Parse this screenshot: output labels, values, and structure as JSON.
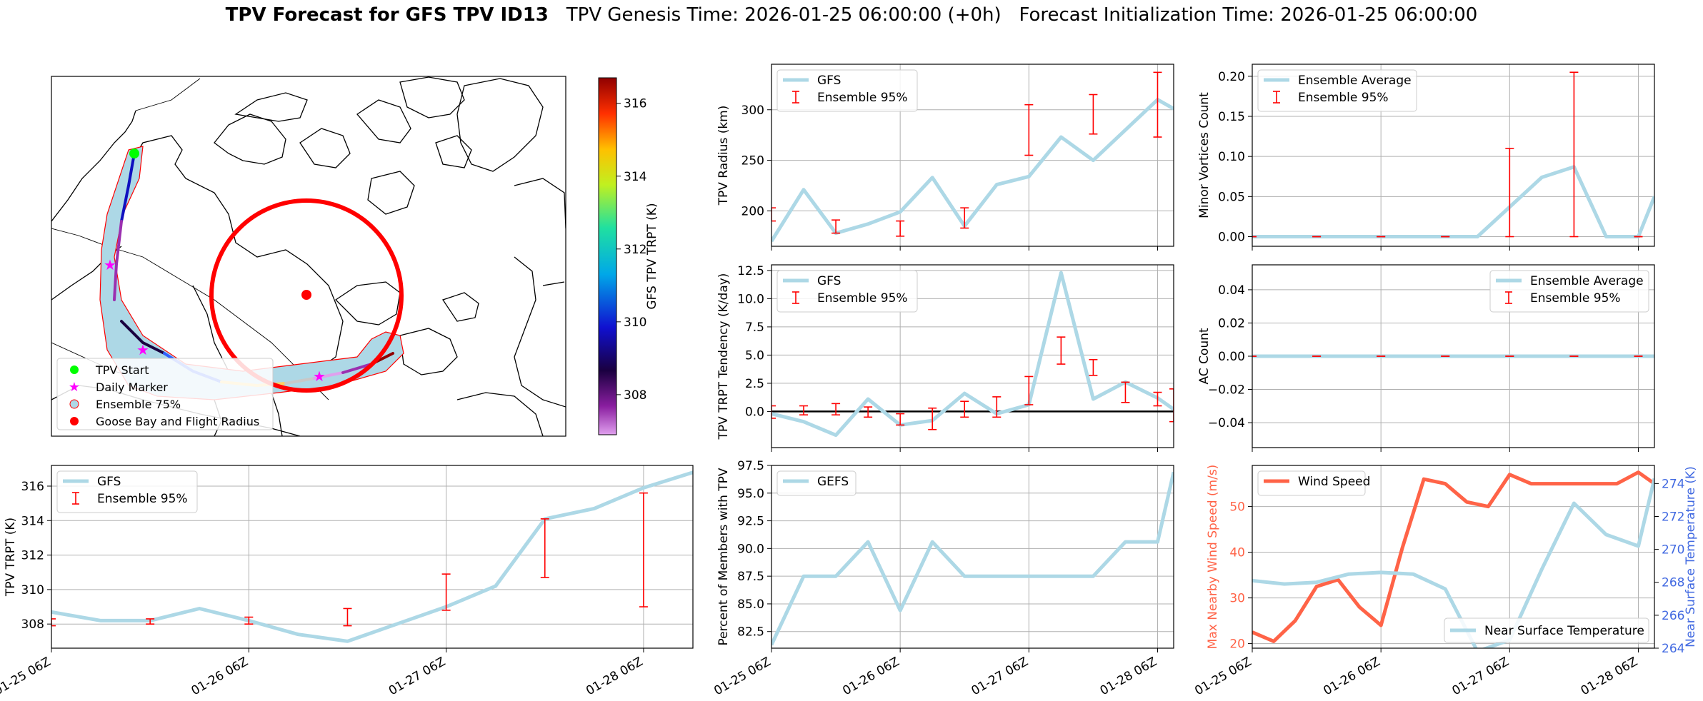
{
  "title": {
    "bold": "TPV Forecast for GFS TPV ID13",
    "genesis": "TPV Genesis Time: 2026-01-25 06:00:00 (+0h)",
    "init": "Forecast Initialization Time: 2026-01-25 06:00:00"
  },
  "colors": {
    "gfs": "#add8e6",
    "ensemble": "#ff0000",
    "wind": "#ff6347",
    "temp": "#4169e1"
  },
  "map": {
    "colorbar": {
      "label": "GFS TPV TRPT (K)",
      "ticks": [
        308,
        310,
        312,
        314,
        316
      ],
      "range": [
        306.9,
        316.7
      ]
    },
    "legend": [
      "TPV Start",
      "Daily Marker",
      "Ensemble 75%",
      "Goose Bay and Flight Radius"
    ]
  },
  "x_tick_labels": [
    "01-25 06Z",
    "01-26 06Z",
    "01-27 06Z",
    "01-28 06Z"
  ],
  "chart_data": [
    {
      "id": "trpt",
      "type": "line",
      "ylabel": "TPV TRPT (K)",
      "ylim": [
        306.6,
        317.2
      ],
      "yticks": [
        308,
        310,
        312,
        314,
        316
      ],
      "xlim": [
        0,
        78
      ],
      "legend": [
        "GFS",
        "Ensemble 95%"
      ],
      "series": [
        {
          "name": "GFS",
          "x": [
            0,
            6,
            12,
            18,
            24,
            30,
            36,
            42,
            48,
            54,
            60,
            66,
            72,
            78
          ],
          "y": [
            308.7,
            308.2,
            308.2,
            308.9,
            308.2,
            307.4,
            307.0,
            308.0,
            309.0,
            310.2,
            314.1,
            314.7,
            315.9,
            316.8
          ]
        }
      ],
      "errorbars": {
        "x": [
          0,
          12,
          24,
          36,
          48,
          60,
          72
        ],
        "low": [
          307.9,
          308.0,
          308.0,
          307.9,
          308.8,
          310.7,
          309.0
        ],
        "high": [
          308.3,
          308.3,
          308.4,
          308.9,
          310.9,
          314.1,
          315.6
        ]
      }
    },
    {
      "id": "radius",
      "type": "line",
      "ylabel": "TPV Radius (km)",
      "ylim": [
        165,
        345
      ],
      "yticks": [
        200,
        250,
        300
      ],
      "xlim": [
        0,
        75
      ],
      "legend": [
        "GFS",
        "Ensemble 95%"
      ],
      "series": [
        {
          "name": "GFS",
          "x": [
            0,
            6,
            12,
            18,
            24,
            30,
            36,
            42,
            48,
            54,
            60,
            66,
            72,
            75
          ],
          "y": [
            170,
            221,
            178,
            187,
            199,
            233,
            185,
            226,
            234,
            273,
            250,
            280,
            310,
            301
          ]
        }
      ],
      "errorbars": {
        "x": [
          0,
          12,
          24,
          36,
          48,
          60,
          72
        ],
        "low": [
          190,
          178,
          175,
          183,
          255,
          276,
          273
        ],
        "high": [
          203,
          191,
          190,
          203,
          305,
          315,
          337
        ]
      }
    },
    {
      "id": "tendency",
      "type": "line",
      "ylabel": "TPV TRPT Tendency (K/day)",
      "ylim": [
        -3.2,
        13.0
      ],
      "yticks": [
        0.0,
        2.5,
        5.0,
        7.5,
        10.0,
        12.5
      ],
      "ytick_labels": [
        "0.0",
        "2.5",
        "5.0",
        "7.5",
        "10.0",
        "12.5"
      ],
      "xlim": [
        0,
        75
      ],
      "legend": [
        "GFS",
        "Ensemble 95%"
      ],
      "series": [
        {
          "name": "GFS",
          "x": [
            0,
            6,
            12,
            18,
            24,
            30,
            36,
            42,
            48,
            54,
            60,
            66,
            72,
            75
          ],
          "y": [
            -0.2,
            -0.9,
            -2.1,
            1.1,
            -1.2,
            -0.8,
            1.6,
            -0.2,
            0.6,
            12.3,
            1.1,
            2.6,
            1.2,
            0.2
          ]
        }
      ],
      "errorbars": {
        "x": [
          0,
          6,
          12,
          18,
          24,
          30,
          36,
          42,
          48,
          54,
          60,
          66,
          72,
          75
        ],
        "low": [
          -0.6,
          -0.3,
          -0.3,
          -0.5,
          -1.2,
          -1.6,
          -0.5,
          -0.5,
          0.6,
          4.2,
          3.2,
          0.8,
          0.5,
          -0.9
        ],
        "high": [
          0.5,
          0.5,
          0.7,
          0.4,
          -0.2,
          0.3,
          0.9,
          1.3,
          3.1,
          6.6,
          4.6,
          2.6,
          1.7,
          2.0
        ]
      },
      "zero_line": true
    },
    {
      "id": "percent",
      "type": "line",
      "ylabel": "Percent of Members with TPV",
      "ylim": [
        81.0,
        97.5
      ],
      "yticks": [
        82.5,
        85.0,
        87.5,
        90.0,
        92.5,
        95.0,
        97.5
      ],
      "ytick_labels": [
        "82.5",
        "85.0",
        "87.5",
        "90.0",
        "92.5",
        "95.0",
        "97.5"
      ],
      "xlim": [
        0,
        75
      ],
      "legend": [
        "GEFS"
      ],
      "series": [
        {
          "name": "GEFS",
          "x": [
            0,
            6,
            12,
            18,
            24,
            30,
            36,
            42,
            48,
            54,
            60,
            66,
            72,
            75
          ],
          "y": [
            81.3,
            87.5,
            87.5,
            90.6,
            84.4,
            90.6,
            87.5,
            87.5,
            87.5,
            87.5,
            87.5,
            90.6,
            90.6,
            96.9
          ]
        }
      ]
    },
    {
      "id": "minor",
      "type": "line",
      "ylabel": "Minor Vortices Count",
      "ylim": [
        -0.012,
        0.215
      ],
      "yticks": [
        0.0,
        0.05,
        0.1,
        0.15,
        0.2
      ],
      "ytick_labels": [
        "0.00",
        "0.05",
        "0.10",
        "0.15",
        "0.20"
      ],
      "xlim": [
        0,
        75
      ],
      "legend": [
        "Ensemble Average",
        "Ensemble 95%"
      ],
      "series": [
        {
          "name": "Ensemble Average",
          "x": [
            0,
            6,
            12,
            18,
            24,
            30,
            36,
            42,
            48,
            54,
            60,
            66,
            72,
            75
          ],
          "y": [
            0,
            0,
            0,
            0,
            0,
            0,
            0,
            0,
            0.037,
            0.074,
            0.087,
            0,
            0,
            0.05
          ]
        }
      ],
      "errorbars": {
        "x": [
          0,
          12,
          24,
          36,
          48,
          60,
          72
        ],
        "low": [
          0,
          0,
          0,
          0,
          0,
          0,
          0
        ],
        "high": [
          0,
          0,
          0,
          0,
          0.11,
          0.205,
          0
        ]
      }
    },
    {
      "id": "ac",
      "type": "line",
      "ylabel": "AC Count",
      "ylim": [
        -0.055,
        0.055
      ],
      "yticks": [
        -0.04,
        -0.02,
        0.0,
        0.02,
        0.04
      ],
      "ytick_labels": [
        "−0.04",
        "−0.02",
        "0.00",
        "0.02",
        "0.04"
      ],
      "xlim": [
        0,
        75
      ],
      "legend": [
        "Ensemble Average",
        "Ensemble 95%"
      ],
      "series": [
        {
          "name": "Ensemble Average",
          "x": [
            0,
            75
          ],
          "y": [
            0,
            0
          ]
        }
      ],
      "errorbars": {
        "x": [
          0,
          12,
          24,
          36,
          48,
          60,
          72
        ],
        "low": [
          0,
          0,
          0,
          0,
          0,
          0,
          0
        ],
        "high": [
          0,
          0,
          0,
          0,
          0,
          0,
          0
        ]
      }
    },
    {
      "id": "wind",
      "type": "line",
      "ylabel": "Max Nearby Wind Speed (m/s)",
      "ylabel2": "Near Surface Temperature (K)",
      "ylim": [
        19,
        59
      ],
      "yticks": [
        20,
        30,
        40,
        50
      ],
      "ylim2": [
        264,
        275.1
      ],
      "yticks2": [
        264,
        266,
        268,
        270,
        272,
        274
      ],
      "xlim": [
        0,
        75
      ],
      "legend": [
        "Wind Speed"
      ],
      "legend2": [
        "Near Surface Temperature"
      ],
      "series": [
        {
          "name": "Wind Speed",
          "x": [
            0,
            4,
            8,
            12,
            16,
            20,
            24,
            28,
            32,
            36,
            40,
            44,
            48,
            52,
            56,
            60,
            64,
            68,
            72,
            75
          ],
          "y": [
            22.5,
            20.5,
            25.0,
            32.5,
            34.0,
            28.0,
            24.0,
            41.0,
            56.0,
            55.0,
            51.0,
            50.0,
            57.0,
            55.0,
            55.0,
            55.0,
            55.0,
            55.0,
            57.5,
            55.0
          ]
        },
        {
          "name": "Near Surface Temperature",
          "x": [
            0,
            6,
            12,
            18,
            24,
            30,
            36,
            42,
            48,
            54,
            60,
            66,
            72,
            75
          ],
          "y": [
            268.1,
            267.9,
            268.0,
            268.5,
            268.6,
            268.5,
            267.6,
            263.8,
            264.5,
            268.8,
            272.8,
            270.9,
            270.2,
            274.3
          ]
        }
      ]
    }
  ]
}
